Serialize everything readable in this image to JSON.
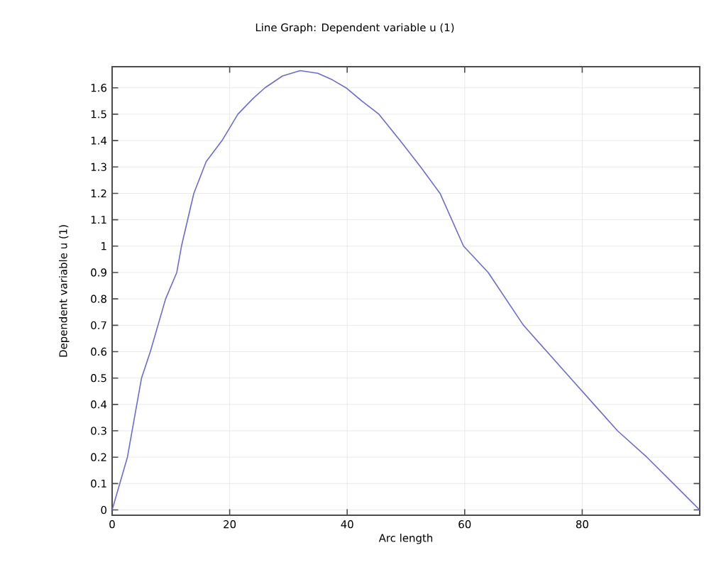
{
  "chart_data": {
    "type": "line",
    "title": "Line Graph: Dependent variable u (1)",
    "xlabel": "Arc length",
    "ylabel": "Dependent variable u (1)",
    "x": [
      0,
      2.6,
      5,
      6.5,
      9.1,
      11,
      11.8,
      13.9,
      16,
      18.7,
      21.4,
      24,
      26,
      29,
      32,
      35,
      37.5,
      39.8,
      42.5,
      45.4,
      49,
      52.5,
      55.8,
      59.8,
      64,
      70,
      74,
      78,
      82,
      86,
      91,
      95.5,
      100
    ],
    "series": [
      {
        "color": "#6b6bd6",
        "values": [
          0,
          0.2,
          0.5,
          0.6,
          0.8,
          0.9,
          1.0,
          1.2,
          1.32,
          1.4,
          1.5,
          1.56,
          1.6,
          1.645,
          1.665,
          1.655,
          1.63,
          1.6,
          1.55,
          1.5,
          1.4,
          1.3,
          1.2,
          1.0,
          0.9,
          0.7,
          0.6,
          0.5,
          0.4,
          0.3,
          0.2,
          0.1,
          0
        ]
      }
    ],
    "xlim": [
      0,
      100
    ],
    "ylim": [
      -0.02,
      1.68
    ],
    "xticks": [
      0,
      20,
      40,
      60,
      80
    ],
    "yticks": [
      0,
      0.1,
      0.2,
      0.3,
      0.4,
      0.5,
      0.6,
      0.7,
      0.8,
      0.9,
      1,
      1.1,
      1.2,
      1.3,
      1.4,
      1.5,
      1.6
    ],
    "grid": true,
    "marker": "none",
    "line_style": "solid"
  }
}
